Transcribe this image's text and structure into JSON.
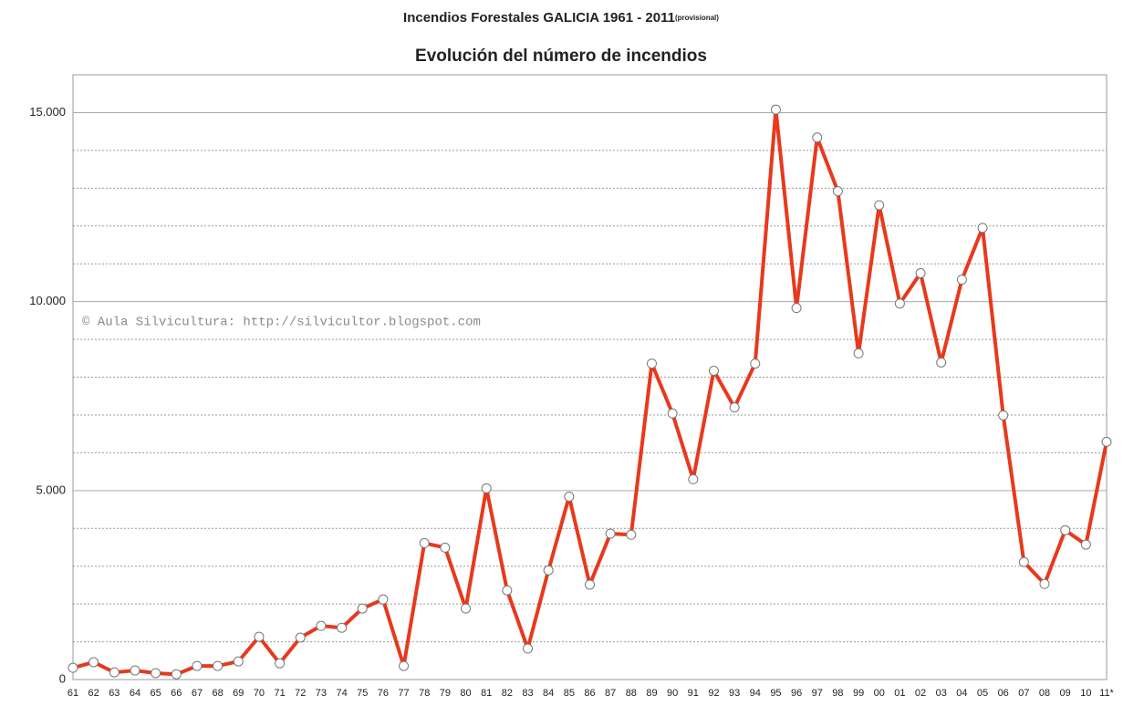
{
  "chart_data": {
    "type": "line",
    "title": "Incendios Forestales GALICIA  1961 - 2011",
    "title_note": "(provisional)",
    "subtitle": "Evolución del número de incendios",
    "annotation": "© Aula Silvicultura: http://silvicultor.blogspot.com",
    "categories": [
      "61",
      "62",
      "63",
      "64",
      "65",
      "66",
      "67",
      "68",
      "69",
      "70",
      "71",
      "72",
      "73",
      "74",
      "75",
      "76",
      "77",
      "78",
      "79",
      "80",
      "81",
      "82",
      "83",
      "84",
      "85",
      "86",
      "87",
      "88",
      "89",
      "90",
      "91",
      "92",
      "93",
      "94",
      "95",
      "96",
      "97",
      "98",
      "99",
      "00",
      "01",
      "02",
      "03",
      "04",
      "05",
      "06",
      "07",
      "08",
      "09",
      "10",
      "11*"
    ],
    "series": [
      {
        "name": "Incendios",
        "color": "#e8391c",
        "values": [
          310,
          460,
          190,
          240,
          170,
          140,
          360,
          360,
          480,
          1130,
          430,
          1110,
          1420,
          1370,
          1880,
          2120,
          360,
          3610,
          3490,
          1880,
          5060,
          2360,
          820,
          2890,
          4840,
          2510,
          3860,
          3830,
          8360,
          7040,
          5300,
          8170,
          7200,
          8360,
          15080,
          9830,
          14340,
          12920,
          8630,
          12550,
          9950,
          10750,
          8390,
          10580,
          11950,
          6990,
          3110,
          2530,
          3950,
          3570,
          6290
        ]
      }
    ],
    "ylim": [
      0,
      16000
    ],
    "yticks": [
      0,
      {
        "value": 5000,
        "label": "5.000"
      },
      {
        "value": 10000,
        "label": "10.000"
      },
      {
        "value": 15000,
        "label": "15.000"
      }
    ],
    "y_minor_ticks": [
      1000,
      2000,
      3000,
      4000,
      6000,
      7000,
      8000,
      9000,
      11000,
      12000,
      13000,
      14000,
      16000
    ],
    "grid": true
  }
}
